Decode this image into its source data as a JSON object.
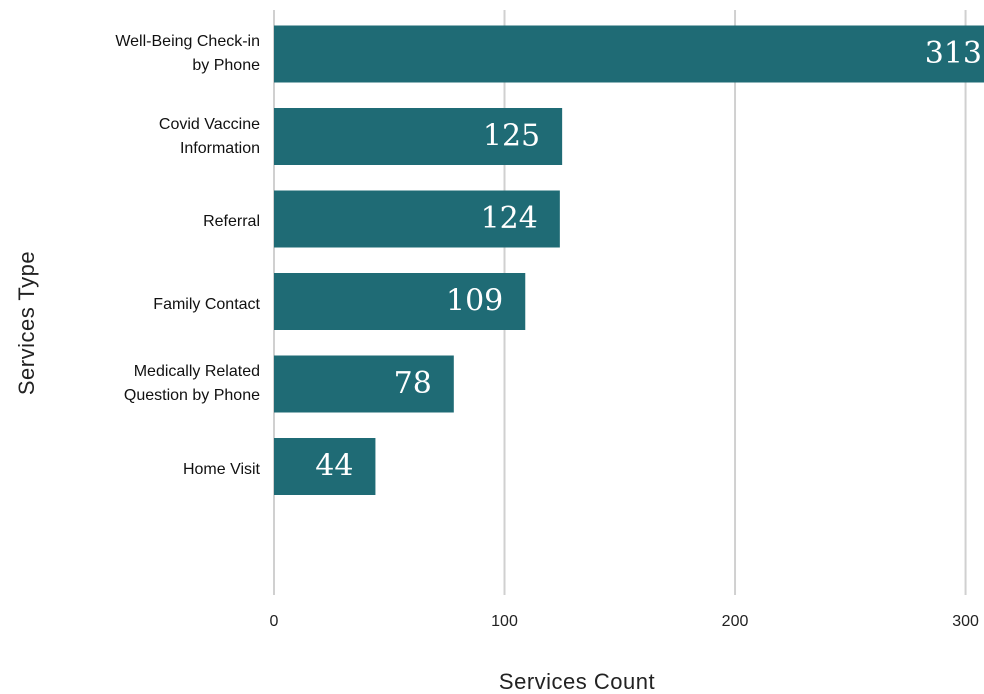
{
  "chart_data": {
    "type": "barh",
    "categories": [
      "Well-Being Check-in\nby Phone",
      "Covid Vaccine\nInformation",
      "Referral",
      "Family Contact",
      "Medically Related\nQuestion by Phone",
      "Home Visit"
    ],
    "values": [
      313,
      125,
      124,
      109,
      78,
      44
    ],
    "color": "#1f6b75",
    "xlim": [
      0,
      308
    ],
    "xticks": [
      0,
      100,
      200,
      300
    ],
    "grid": true,
    "xlabel": "Services Count",
    "ylabel": "Services Type"
  }
}
